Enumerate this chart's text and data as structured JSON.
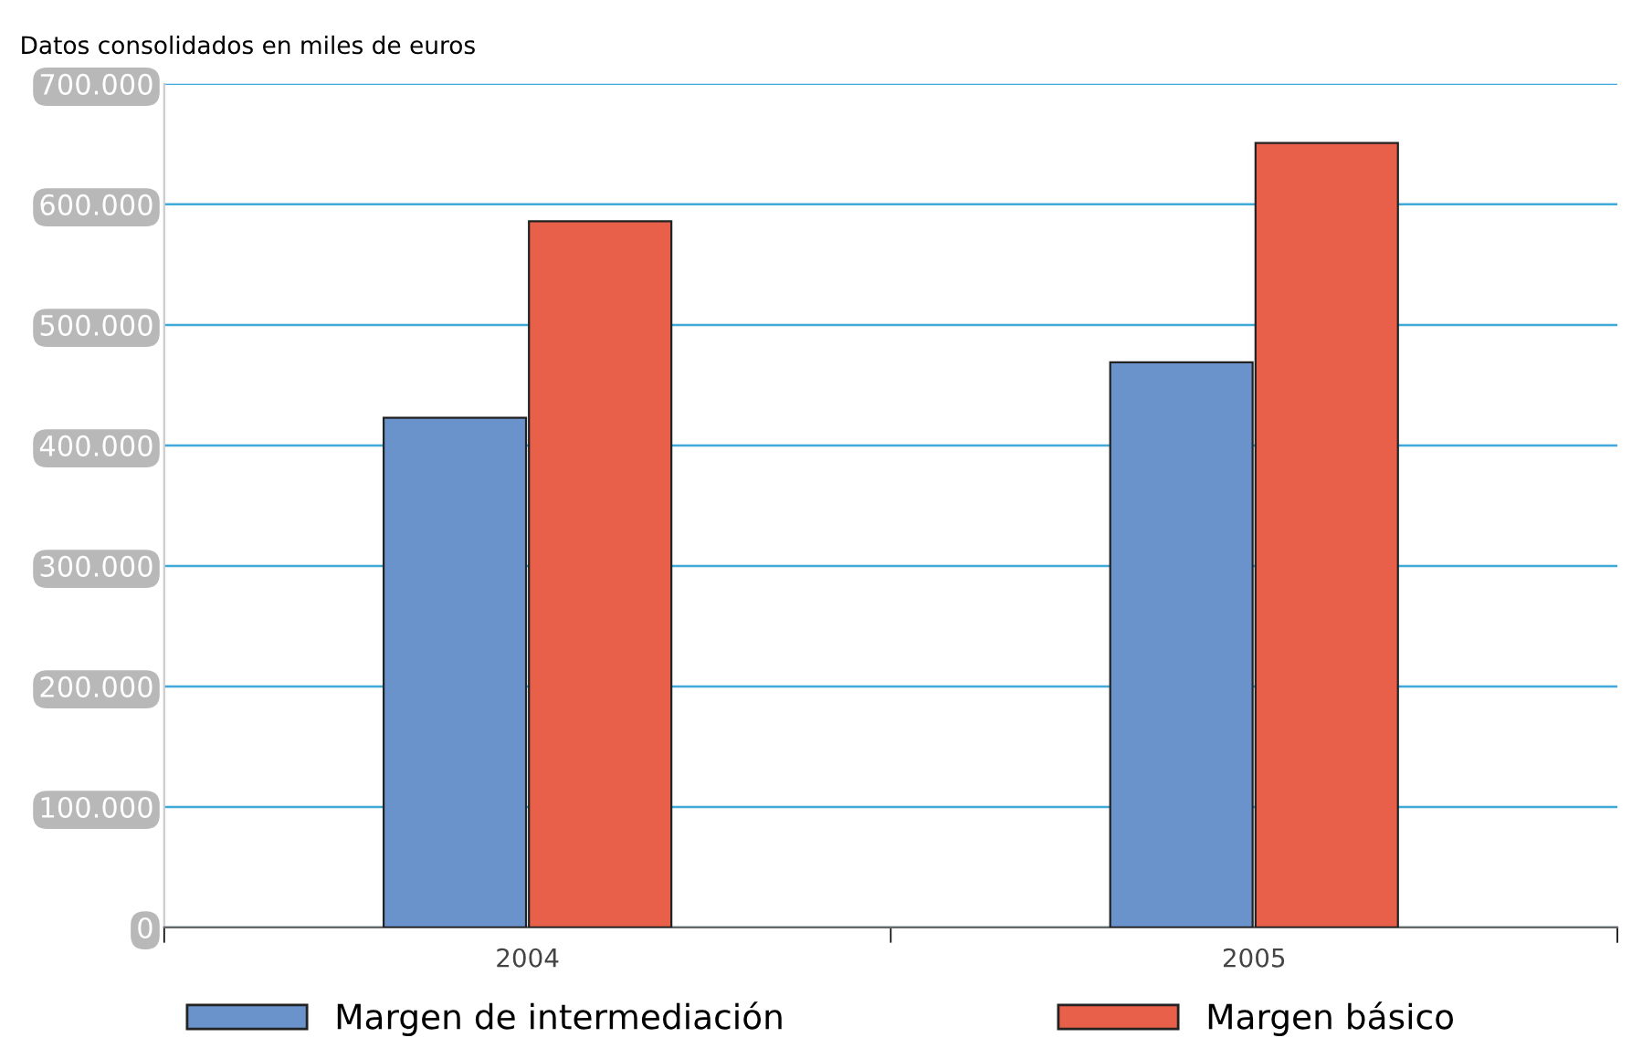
{
  "chart_data": {
    "type": "bar",
    "title": "Datos consolidados en miles de euros",
    "categories": [
      "2004",
      "2005"
    ],
    "series": [
      {
        "name": "Margen de intermediación",
        "color": "#6a93cc",
        "values": [
          423000,
          469000
        ]
      },
      {
        "name": "Margen básico",
        "color": "#e8604a",
        "values": [
          586000,
          651000
        ]
      }
    ],
    "ylim": [
      0,
      700000
    ],
    "yticks": [
      0,
      {
        "value": 100000,
        "label": "100.000"
      },
      {
        "value": 200000,
        "label": "200.000"
      },
      {
        "value": 300000,
        "label": "300.000"
      },
      {
        "value": 400000,
        "label": "400.000"
      },
      {
        "value": 500000,
        "label": "500.000"
      },
      {
        "value": 600000,
        "label": "600.000"
      },
      {
        "value": 700000,
        "label": "700.000"
      }
    ],
    "grid": "y",
    "legend": "bottom"
  }
}
